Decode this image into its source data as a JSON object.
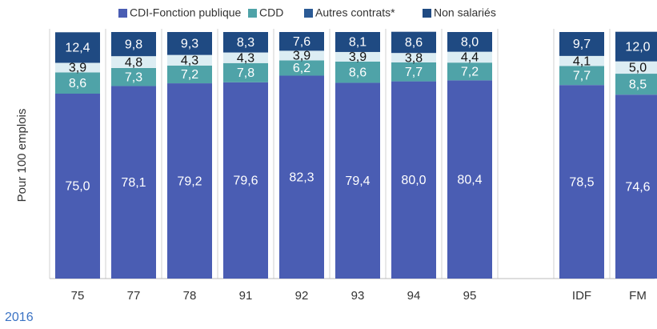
{
  "chart_data": {
    "type": "bar",
    "stacked": true,
    "y_label": "Pour 100 emplois",
    "footnote": "2016",
    "categories": [
      "75",
      "77",
      "78",
      "91",
      "92",
      "93",
      "94",
      "95",
      null,
      "IDF",
      "FM"
    ],
    "ylim": [
      0,
      100
    ],
    "series": [
      {
        "name": "CDI-Fonction publique",
        "color": "#4a5db3",
        "label_color": "#ffffff",
        "values": [
          75.0,
          78.1,
          79.2,
          79.6,
          82.3,
          79.4,
          80.0,
          80.4,
          null,
          78.5,
          74.6
        ],
        "value_labels": [
          "75,0",
          "78,1",
          "79,2",
          "79,6",
          "82,3",
          "79,4",
          "80,0",
          "80,4",
          null,
          "78,5",
          "74,6"
        ]
      },
      {
        "name": "CDD",
        "color": "#4fa3a8",
        "label_color": "#ffffff",
        "values": [
          8.6,
          7.3,
          7.2,
          7.8,
          6.2,
          8.6,
          7.7,
          7.2,
          null,
          7.7,
          8.5
        ],
        "value_labels": [
          "8,6",
          "7,3",
          "7,2",
          "7,8",
          "6,2",
          "8,6",
          "7,7",
          "7,2",
          null,
          "7,7",
          "8,5"
        ]
      },
      {
        "name": "Autres contrats*",
        "color": "#dcedf3",
        "label_color": "#111111",
        "values": [
          3.9,
          4.8,
          4.3,
          4.3,
          3.9,
          3.9,
          3.8,
          4.4,
          null,
          4.1,
          5.0
        ],
        "value_labels": [
          "3,9",
          "4,8",
          "4,3",
          "4,3",
          "3,9",
          "3,9",
          "3,8",
          "4,4",
          null,
          "4,1",
          "5,0"
        ]
      },
      {
        "name": "Non salariés",
        "color": "#1f4a82",
        "label_color": "#ffffff",
        "values": [
          12.4,
          9.8,
          9.3,
          8.3,
          7.6,
          8.1,
          8.6,
          8.0,
          null,
          9.7,
          12.0
        ],
        "value_labels": [
          "12,4",
          "9,8",
          "9,3",
          "8,3",
          "7,6",
          "8,1",
          "8,6",
          "8,0",
          null,
          "9,7",
          "12,0"
        ]
      }
    ]
  }
}
